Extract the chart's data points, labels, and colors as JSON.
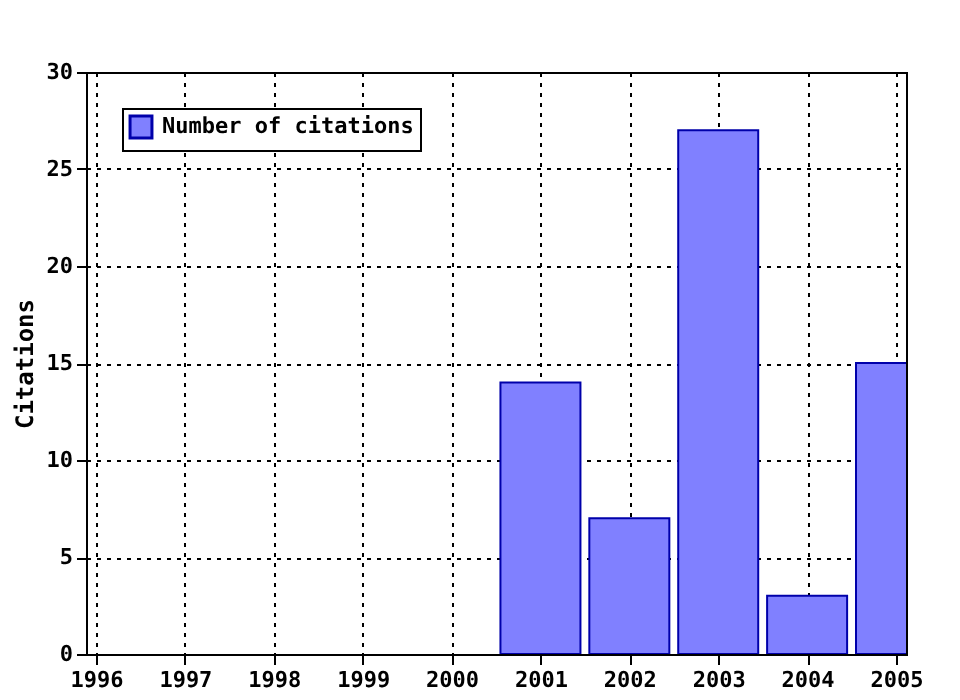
{
  "chart_data": {
    "type": "bar",
    "x": [
      2001,
      2002,
      2003,
      2004,
      2005
    ],
    "series": [
      {
        "name": "Number of citations",
        "color": "#8080ff",
        "values": [
          14,
          7,
          27,
          3,
          15
        ]
      }
    ],
    "ylabel": "Citations",
    "xlim": [
      1996,
      2005
    ],
    "xticks": [
      1996,
      1997,
      1998,
      1999,
      2000,
      2001,
      2002,
      2003,
      2004,
      2005
    ],
    "ylim": [
      0,
      30
    ],
    "yticks": [
      0,
      5,
      10,
      15,
      20,
      25,
      30
    ],
    "grid": true,
    "legend": "top left"
  }
}
